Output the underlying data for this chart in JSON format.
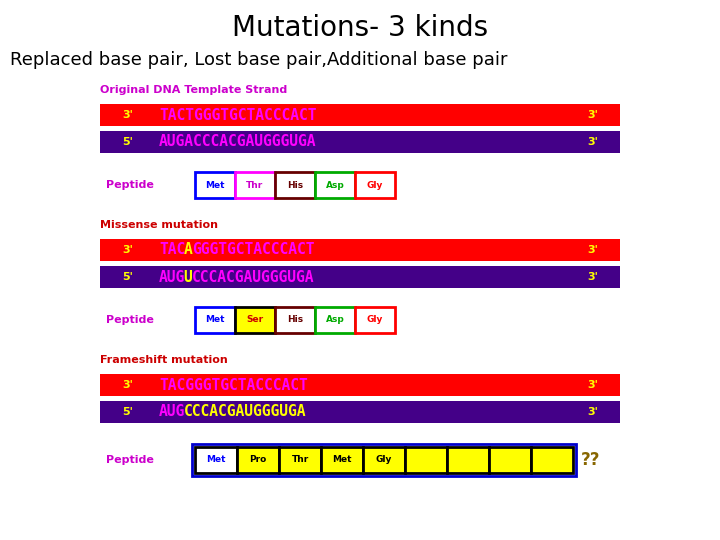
{
  "title": "Mutations- 3 kinds",
  "subtitle": "Replaced base pair, Lost base pair,Additional base pair",
  "title_fontsize": 20,
  "subtitle_fontsize": 13,
  "bg_color": "#ffffff",
  "section1_label": "Original DNA Template Strand",
  "section1_label_color": "#cc00cc",
  "dna1_top_seq": "TACTGGGTGCTACCCACT",
  "dna1_bot_seq": "AUGACCCACGAUGGGUGA",
  "peptide1_label": "Peptide",
  "peptide1_aa": [
    "Met",
    "Thr",
    "His",
    "Asp",
    "Gly"
  ],
  "peptide1_colors": [
    "#ffffff",
    "#ffffff",
    "#ffffff",
    "#ffffff",
    "#ffffff"
  ],
  "peptide1_border_colors": [
    "#0000ff",
    "#ff00ff",
    "#660000",
    "#00aa00",
    "#ff0000"
  ],
  "peptide1_text_colors": [
    "#0000ff",
    "#cc00cc",
    "#660000",
    "#00aa00",
    "#ff0000"
  ],
  "section2_label": "Missense mutation",
  "section2_label_color": "#cc0000",
  "dna2_top_parts": [
    [
      "TAC",
      "#ff00ff"
    ],
    [
      "A",
      "#ffff00"
    ],
    [
      "GGGTGCTACCCACT",
      "#ff00ff"
    ]
  ],
  "dna2_bot_parts": [
    [
      "AUG",
      "#ff00ff"
    ],
    [
      "U",
      "#ffff00"
    ],
    [
      "CCCACGAUGGGUGA",
      "#ff00ff"
    ]
  ],
  "peptide2_label": "Peptide",
  "peptide2_aa": [
    "Met",
    "Ser",
    "His",
    "Asp",
    "Gly"
  ],
  "peptide2_colors": [
    "#ffffff",
    "#ffff00",
    "#ffffff",
    "#ffffff",
    "#ffffff"
  ],
  "peptide2_border_colors": [
    "#0000ff",
    "#000000",
    "#660000",
    "#00aa00",
    "#ff0000"
  ],
  "peptide2_text_colors": [
    "#0000ff",
    "#cc0000",
    "#660000",
    "#00aa00",
    "#ff0000"
  ],
  "section3_label": "Frameshift mutation",
  "section3_label_color": "#cc0000",
  "dna3_top_seq": "TACGGGTGCTACCCACT",
  "dna3_bot_parts": [
    [
      "AUG",
      "#ff00ff"
    ],
    [
      "CCCACGAUGGGUGA",
      "#ffff00"
    ]
  ],
  "peptide3_label": "Peptide",
  "peptide3_aa": [
    "Met",
    "Pro",
    "Thr",
    "Met",
    "Gly",
    "",
    "",
    "",
    ""
  ],
  "peptide3_colors": [
    "#ffffff",
    "#ffff00",
    "#ffff00",
    "#ffff00",
    "#ffff00",
    "#ffff00",
    "#ffff00",
    "#ffff00",
    "#ffff00"
  ],
  "peptide3_text_colors": [
    "#0000ff",
    "#000000",
    "#000000",
    "#000000",
    "#000000",
    "#000000",
    "#000000",
    "#000000",
    "#000000"
  ],
  "peptide3_qq": "??",
  "peptide3_qq_color": "#886600",
  "bar_red": "#ff0000",
  "bar_purple": "#440088",
  "seq_magenta": "#ff00ff",
  "label_yellow": "#ffff00"
}
